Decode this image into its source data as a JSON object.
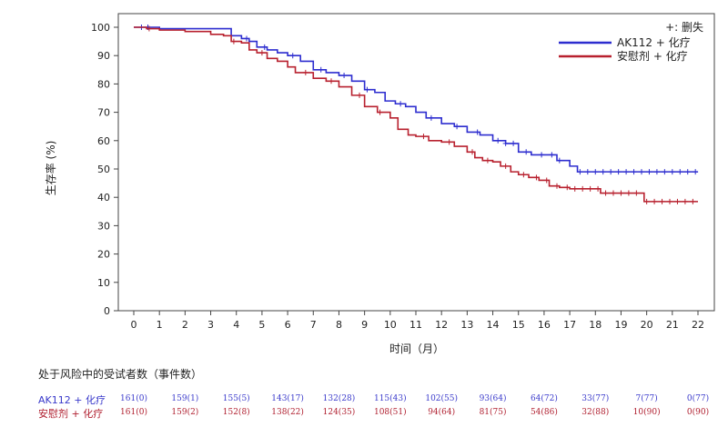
{
  "chart_data": {
    "type": "line",
    "xlabel": "时间（月）",
    "ylabel": "生存率 (%)",
    "xlim": [
      0,
      22
    ],
    "ylim": [
      0,
      100
    ],
    "x_ticks": [
      "0",
      "1",
      "2",
      "3",
      "4",
      "5",
      "6",
      "7",
      "8",
      "9",
      "10",
      "11",
      "12",
      "13",
      "14",
      "15",
      "16",
      "17",
      "18",
      "19",
      "20",
      "21",
      "22"
    ],
    "y_ticks": [
      "0",
      "10",
      "20",
      "30",
      "40",
      "50",
      "60",
      "70",
      "80",
      "90",
      "100"
    ],
    "legend": {
      "position": "top-right",
      "censor_note": "+: 删失",
      "entries": [
        "AK112 + 化疗",
        "安慰剂 + 化疗"
      ]
    },
    "series": [
      {
        "name": "AK112 + 化疗",
        "color": "#2d2dcf",
        "points": [
          [
            0,
            100
          ],
          [
            0.5,
            100
          ],
          [
            1,
            99.5
          ],
          [
            2,
            99.5
          ],
          [
            3,
            99.5
          ],
          [
            3.5,
            99.5
          ],
          [
            3.8,
            97
          ],
          [
            4.2,
            96
          ],
          [
            4.5,
            95
          ],
          [
            4.8,
            93
          ],
          [
            5.2,
            92
          ],
          [
            5.6,
            91
          ],
          [
            6,
            90
          ],
          [
            6.5,
            88
          ],
          [
            7,
            85
          ],
          [
            7.5,
            84
          ],
          [
            8,
            83
          ],
          [
            8.5,
            81
          ],
          [
            9,
            78
          ],
          [
            9.4,
            77
          ],
          [
            9.8,
            74
          ],
          [
            10.2,
            73
          ],
          [
            10.6,
            72
          ],
          [
            11,
            70
          ],
          [
            11.4,
            68
          ],
          [
            12,
            66
          ],
          [
            12.5,
            65
          ],
          [
            13,
            63
          ],
          [
            13.5,
            62
          ],
          [
            14,
            60
          ],
          [
            14.5,
            59
          ],
          [
            15,
            56
          ],
          [
            15.5,
            55
          ],
          [
            16,
            55
          ],
          [
            16.5,
            53
          ],
          [
            17,
            51
          ],
          [
            17.3,
            49
          ],
          [
            18,
            49
          ],
          [
            19,
            49
          ],
          [
            20,
            49
          ],
          [
            21,
            49
          ],
          [
            22,
            49
          ]
        ],
        "censor_x": [
          0.3,
          0.55,
          4.4,
          5.1,
          6.2,
          7.3,
          8.2,
          9.1,
          10.4,
          11.6,
          12.6,
          13.4,
          14.2,
          14.5,
          14.8,
          15.3,
          15.9,
          16.3,
          16.6,
          17.4,
          17.7,
          18.0,
          18.3,
          18.6,
          18.9,
          19.2,
          19.5,
          19.8,
          20.1,
          20.4,
          20.7,
          21.0,
          21.3,
          21.6,
          21.9
        ]
      },
      {
        "name": "安慰剂 + 化疗",
        "color": "#b8202e",
        "points": [
          [
            0,
            100
          ],
          [
            0.5,
            99.5
          ],
          [
            1,
            99
          ],
          [
            2,
            98.5
          ],
          [
            3,
            97.5
          ],
          [
            3.5,
            97
          ],
          [
            3.8,
            95
          ],
          [
            4.2,
            94.5
          ],
          [
            4.5,
            92
          ],
          [
            4.8,
            91
          ],
          [
            5.2,
            89
          ],
          [
            5.6,
            88
          ],
          [
            6,
            86
          ],
          [
            6.3,
            84
          ],
          [
            7,
            82
          ],
          [
            7.5,
            81
          ],
          [
            8,
            79
          ],
          [
            8.5,
            76
          ],
          [
            9,
            72
          ],
          [
            9.5,
            70
          ],
          [
            10,
            68
          ],
          [
            10.3,
            64
          ],
          [
            10.7,
            62
          ],
          [
            11,
            61.5
          ],
          [
            11.5,
            60
          ],
          [
            12,
            59.5
          ],
          [
            12.5,
            58
          ],
          [
            13,
            56
          ],
          [
            13.3,
            54
          ],
          [
            13.6,
            53
          ],
          [
            14,
            52.5
          ],
          [
            14.3,
            51
          ],
          [
            14.7,
            49
          ],
          [
            15,
            48
          ],
          [
            15.4,
            47
          ],
          [
            15.8,
            46
          ],
          [
            16.2,
            44
          ],
          [
            16.6,
            43.5
          ],
          [
            17,
            43
          ],
          [
            17.5,
            43
          ],
          [
            18,
            43
          ],
          [
            18.2,
            41.5
          ],
          [
            19,
            41.5
          ],
          [
            19.8,
            41.5
          ],
          [
            19.9,
            38.5
          ],
          [
            21,
            38.5
          ],
          [
            22,
            38.5
          ]
        ],
        "censor_x": [
          0.6,
          3.9,
          5.0,
          6.7,
          7.7,
          8.8,
          9.6,
          11.3,
          12.3,
          13.2,
          13.8,
          14.5,
          15.2,
          15.7,
          16.1,
          16.5,
          16.9,
          17.2,
          17.5,
          17.8,
          18.1,
          18.4,
          18.7,
          19.0,
          19.3,
          19.6,
          20.0,
          20.3,
          20.6,
          20.9,
          21.2,
          21.5,
          21.8
        ]
      }
    ]
  },
  "risk_table": {
    "title": "处于风险中的受试者数（事件数）",
    "rows": [
      {
        "label": "AK112 + 化疗",
        "color": "#3a3acb",
        "values": [
          "161(0)",
          "159(1)",
          "155(5)",
          "143(17)",
          "132(28)",
          "115(43)",
          "102(55)",
          "93(64)",
          "64(72)",
          "33(77)",
          "7(77)",
          "0(77)"
        ]
      },
      {
        "label": "安慰剂 + 化疗",
        "color": "#b02030",
        "values": [
          "161(0)",
          "159(2)",
          "152(8)",
          "138(22)",
          "124(35)",
          "108(51)",
          "94(64)",
          "81(75)",
          "54(86)",
          "32(88)",
          "10(90)",
          "0(90)"
        ]
      }
    ]
  }
}
